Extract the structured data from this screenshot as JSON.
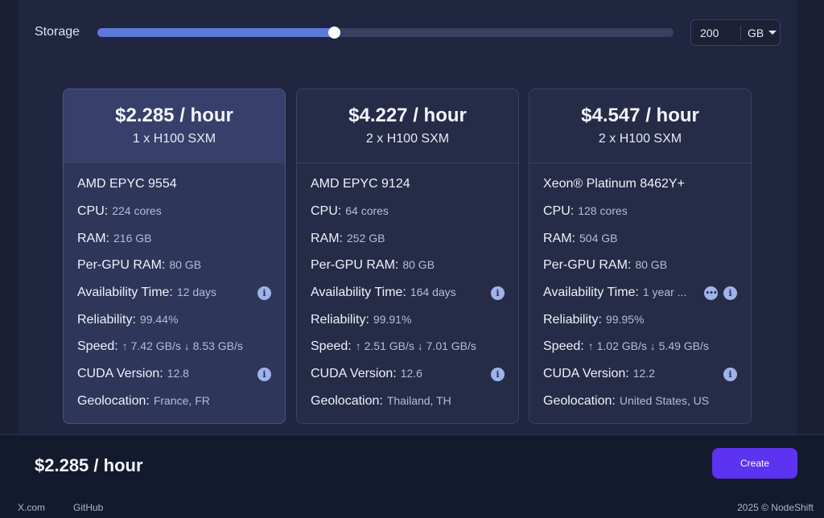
{
  "storage": {
    "label": "Storage",
    "slider_fraction": 0.41,
    "value": "200",
    "unit": "GB"
  },
  "offers": [
    {
      "price": "$2.285 / hour",
      "gpu": "1 x H100 SXM",
      "cpu_model": "AMD EPYC 9554",
      "selected": true,
      "specs": [
        {
          "k": "CPU:",
          "v": "224 cores",
          "icons": []
        },
        {
          "k": "RAM:",
          "v": "216 GB",
          "icons": []
        },
        {
          "k": "Per-GPU RAM:",
          "v": "80 GB",
          "icons": []
        },
        {
          "k": "Availability Time:",
          "v": "12 days",
          "icons": [
            "info-icon"
          ]
        },
        {
          "k": "Reliability:",
          "v": "99.44%",
          "icons": []
        },
        {
          "k": "Speed:",
          "v": "↑ 7.42 GB/s ↓ 8.53 GB/s",
          "icons": []
        },
        {
          "k": "CUDA Version:",
          "v": "12.8",
          "icons": [
            "info-icon"
          ]
        },
        {
          "k": "Geolocation:",
          "v": "France, FR",
          "icons": []
        }
      ]
    },
    {
      "price": "$4.227 / hour",
      "gpu": "2 x H100 SXM",
      "cpu_model": "AMD EPYC 9124",
      "selected": false,
      "specs": [
        {
          "k": "CPU:",
          "v": "64 cores",
          "icons": []
        },
        {
          "k": "RAM:",
          "v": "252 GB",
          "icons": []
        },
        {
          "k": "Per-GPU RAM:",
          "v": "80 GB",
          "icons": []
        },
        {
          "k": "Availability Time:",
          "v": "164 days",
          "icons": [
            "info-icon"
          ]
        },
        {
          "k": "Reliability:",
          "v": "99.91%",
          "icons": []
        },
        {
          "k": "Speed:",
          "v": "↑ 2.51 GB/s ↓ 7.01 GB/s",
          "icons": []
        },
        {
          "k": "CUDA Version:",
          "v": "12.6",
          "icons": [
            "info-icon"
          ]
        },
        {
          "k": "Geolocation:",
          "v": "Thailand, TH",
          "icons": []
        }
      ]
    },
    {
      "price": "$4.547 / hour",
      "gpu": "2 x H100 SXM",
      "cpu_model": "Xeon® Platinum 8462Y+",
      "selected": false,
      "specs": [
        {
          "k": "CPU:",
          "v": "128 cores",
          "icons": []
        },
        {
          "k": "RAM:",
          "v": "504 GB",
          "icons": []
        },
        {
          "k": "Per-GPU RAM:",
          "v": "80 GB",
          "icons": []
        },
        {
          "k": "Availability Time:",
          "v": "1 year ...",
          "icons": [
            "more-icon",
            "info-icon"
          ]
        },
        {
          "k": "Reliability:",
          "v": "99.95%",
          "icons": []
        },
        {
          "k": "Speed:",
          "v": "↑ 1.02 GB/s ↓ 5.49 GB/s",
          "icons": []
        },
        {
          "k": "CUDA Version:",
          "v": "12.2",
          "icons": [
            "info-icon"
          ]
        },
        {
          "k": "Geolocation:",
          "v": "United States, US",
          "icons": []
        }
      ]
    }
  ],
  "footer": {
    "total_price": "$2.285 / hour",
    "create_label": "Create",
    "links": [
      "X.com",
      "GitHub"
    ],
    "copyright": "2025 © NodeShift"
  },
  "icons": {
    "info-icon": "i",
    "more-icon": "•••"
  },
  "colors": {
    "accent": "#5b33f0",
    "slider": "#5e7ad8",
    "info": "#9fb3ea"
  }
}
